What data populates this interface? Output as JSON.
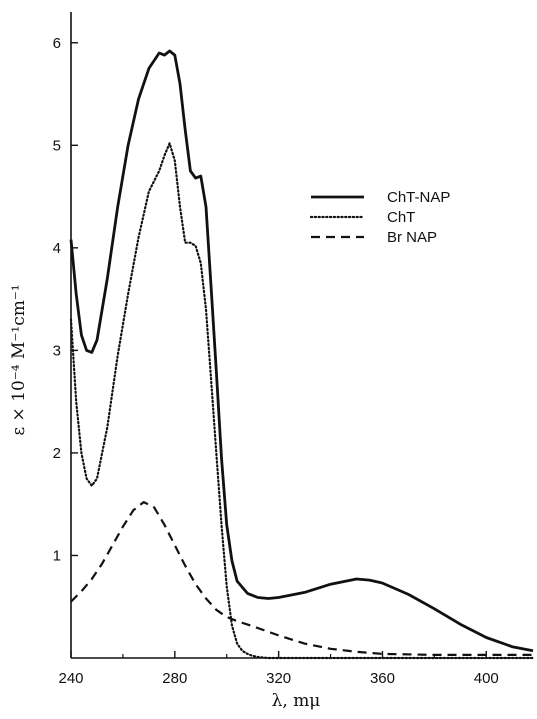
{
  "chart_data": {
    "type": "line",
    "xlabel": "λ, mμ",
    "ylabel": "ε × 10⁻⁴ M⁻¹cm⁻¹",
    "xlim": [
      240,
      418
    ],
    "ylim": [
      0,
      6.3
    ],
    "x_ticks": [
      240,
      280,
      320,
      360,
      400
    ],
    "x_tick_labels": [
      "240",
      "280",
      "320",
      "360",
      "400"
    ],
    "y_ticks": [
      1,
      2,
      3,
      4,
      5,
      6
    ],
    "y_tick_labels": [
      "1",
      "2",
      "3",
      "4",
      "5",
      "6"
    ],
    "grid": false,
    "legend_position": "top-right",
    "series": [
      {
        "name": "ChT-NAP",
        "style": "solid",
        "x": [
          240,
          242,
          244,
          246,
          248,
          250,
          254,
          258,
          262,
          266,
          270,
          274,
          276,
          278,
          280,
          282,
          284,
          286,
          288,
          290,
          292,
          294,
          296,
          298,
          300,
          302,
          304,
          308,
          312,
          316,
          320,
          330,
          340,
          350,
          355,
          360,
          370,
          380,
          390,
          400,
          410,
          418
        ],
        "y": [
          4.08,
          3.55,
          3.15,
          3.0,
          2.98,
          3.1,
          3.7,
          4.4,
          5.0,
          5.45,
          5.75,
          5.9,
          5.88,
          5.92,
          5.88,
          5.6,
          5.15,
          4.75,
          4.68,
          4.7,
          4.4,
          3.6,
          2.8,
          1.95,
          1.3,
          0.95,
          0.75,
          0.63,
          0.59,
          0.58,
          0.59,
          0.64,
          0.72,
          0.77,
          0.76,
          0.73,
          0.62,
          0.48,
          0.33,
          0.2,
          0.11,
          0.07
        ]
      },
      {
        "name": "ChT",
        "style": "dotted",
        "x": [
          240,
          242,
          244,
          246,
          248,
          250,
          254,
          258,
          262,
          266,
          270,
          274,
          276,
          278,
          280,
          282,
          284,
          286,
          288,
          290,
          292,
          294,
          296,
          298,
          300,
          302,
          304,
          306,
          308,
          310,
          312,
          316,
          320,
          340,
          360,
          380,
          400,
          418
        ],
        "y": [
          3.3,
          2.5,
          2.0,
          1.75,
          1.68,
          1.75,
          2.25,
          2.95,
          3.55,
          4.1,
          4.55,
          4.75,
          4.9,
          5.02,
          4.85,
          4.4,
          4.05,
          4.05,
          4.02,
          3.85,
          3.4,
          2.7,
          2.0,
          1.3,
          0.7,
          0.32,
          0.14,
          0.07,
          0.04,
          0.02,
          0.01,
          0.0,
          0.0,
          0.0,
          0.0,
          0.0,
          0.0,
          0.0
        ]
      },
      {
        "name": "Br NAP",
        "style": "dashed",
        "x": [
          240,
          244,
          248,
          252,
          256,
          260,
          264,
          268,
          272,
          276,
          280,
          284,
          288,
          292,
          296,
          300,
          304,
          310,
          320,
          330,
          340,
          350,
          360,
          380,
          400,
          418
        ],
        "y": [
          0.55,
          0.65,
          0.77,
          0.92,
          1.1,
          1.28,
          1.44,
          1.52,
          1.47,
          1.3,
          1.1,
          0.9,
          0.72,
          0.58,
          0.47,
          0.4,
          0.36,
          0.31,
          0.22,
          0.14,
          0.09,
          0.06,
          0.04,
          0.03,
          0.03,
          0.03
        ]
      }
    ]
  }
}
